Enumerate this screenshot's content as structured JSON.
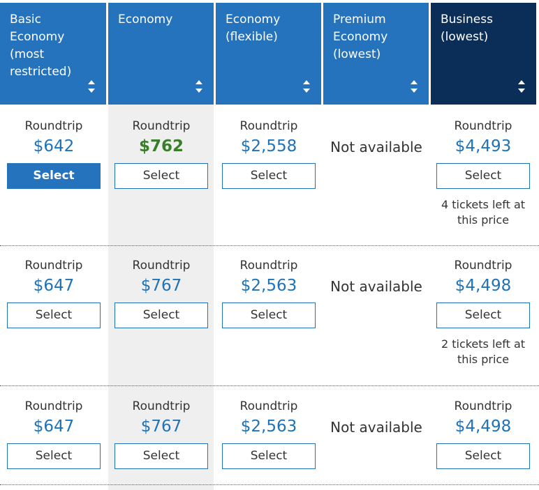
{
  "columns": [
    {
      "title": "Basic Economy (most restricted)"
    },
    {
      "title": "Economy"
    },
    {
      "title": "Economy (flexible)"
    },
    {
      "title": "Premium Economy (lowest)"
    },
    {
      "title": "Business (lowest)"
    }
  ],
  "rows": [
    {
      "cells": [
        {
          "label": "Roundtrip",
          "price": "$642",
          "button": "Select",
          "selected": true
        },
        {
          "label": "Roundtrip",
          "price": "$762",
          "button": "Select",
          "highlight": "green"
        },
        {
          "label": "Roundtrip",
          "price": "$2,558",
          "button": "Select"
        },
        {
          "unavailable": "Not available"
        },
        {
          "label": "Roundtrip",
          "price": "$4,493",
          "button": "Select",
          "note": "4 tickets left at this price"
        }
      ]
    },
    {
      "cells": [
        {
          "label": "Roundtrip",
          "price": "$647",
          "button": "Select"
        },
        {
          "label": "Roundtrip",
          "price": "$767",
          "button": "Select"
        },
        {
          "label": "Roundtrip",
          "price": "$2,563",
          "button": "Select"
        },
        {
          "unavailable": "Not available"
        },
        {
          "label": "Roundtrip",
          "price": "$4,498",
          "button": "Select",
          "note": "2 tickets left at this price"
        }
      ]
    },
    {
      "cells": [
        {
          "label": "Roundtrip",
          "price": "$647",
          "button": "Select"
        },
        {
          "label": "Roundtrip",
          "price": "$767",
          "button": "Select"
        },
        {
          "label": "Roundtrip",
          "price": "$2,563",
          "button": "Select"
        },
        {
          "unavailable": "Not available"
        },
        {
          "label": "Roundtrip",
          "price": "$4,498",
          "button": "Select"
        }
      ]
    }
  ],
  "colors": {
    "header_blue": "#2573bd",
    "header_dark": "#0a2e57",
    "price_blue": "#1f72b8",
    "price_green": "#3a7d2a",
    "selected_column_bg": "#efefef"
  }
}
